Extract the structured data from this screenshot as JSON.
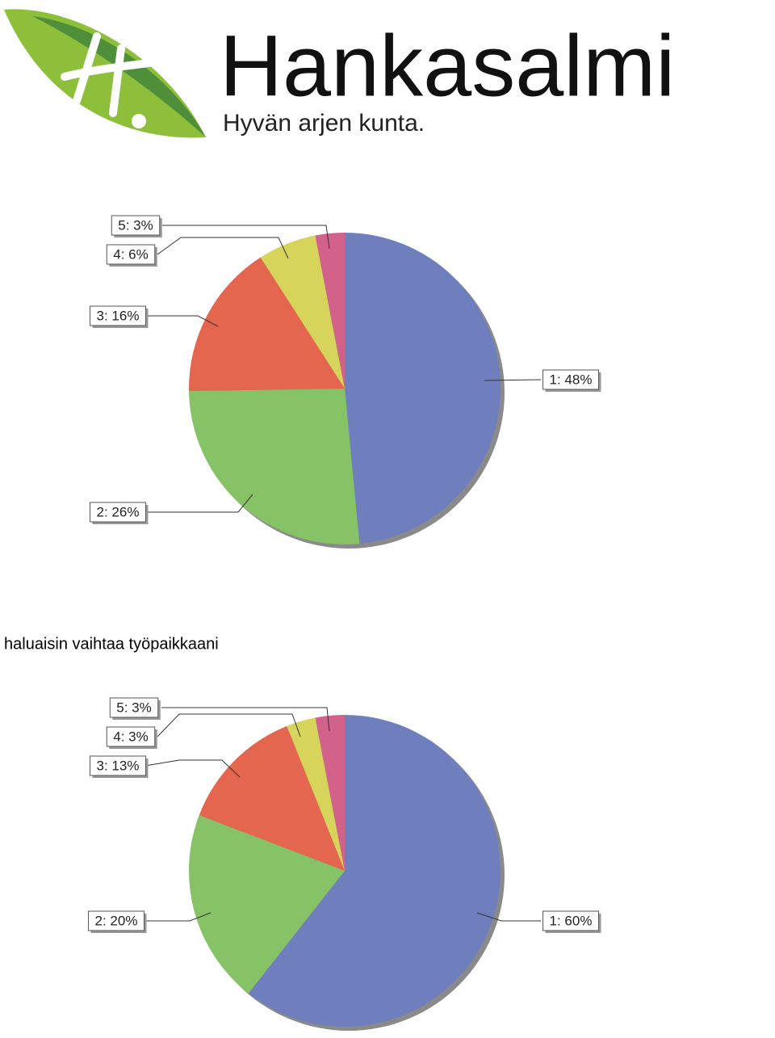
{
  "header": {
    "logo_name": "Hankasalmi",
    "logo_slogan": "Hyvän arjen kunta."
  },
  "chart_data": [
    {
      "type": "pie",
      "values": [
        48,
        26,
        16,
        6,
        3
      ],
      "value_labels": [
        "1: 48%",
        "2: 26%",
        "3: 16%",
        "4: 6%",
        "5: 3%"
      ],
      "colors": [
        "#6f7fbd",
        "#86c266",
        "#e4664f",
        "#d7d45c",
        "#d3628a"
      ]
    },
    {
      "type": "pie",
      "title": "haluaisin vaihtaa työpaikkaani",
      "values": [
        60,
        20,
        13,
        3,
        3
      ],
      "value_labels": [
        "1: 60%",
        "2: 20%",
        "3: 13%",
        "4: 3%",
        "5: 3%"
      ],
      "colors": [
        "#6f7fbd",
        "#86c266",
        "#e4664f",
        "#d7d45c",
        "#d3628a"
      ]
    }
  ]
}
